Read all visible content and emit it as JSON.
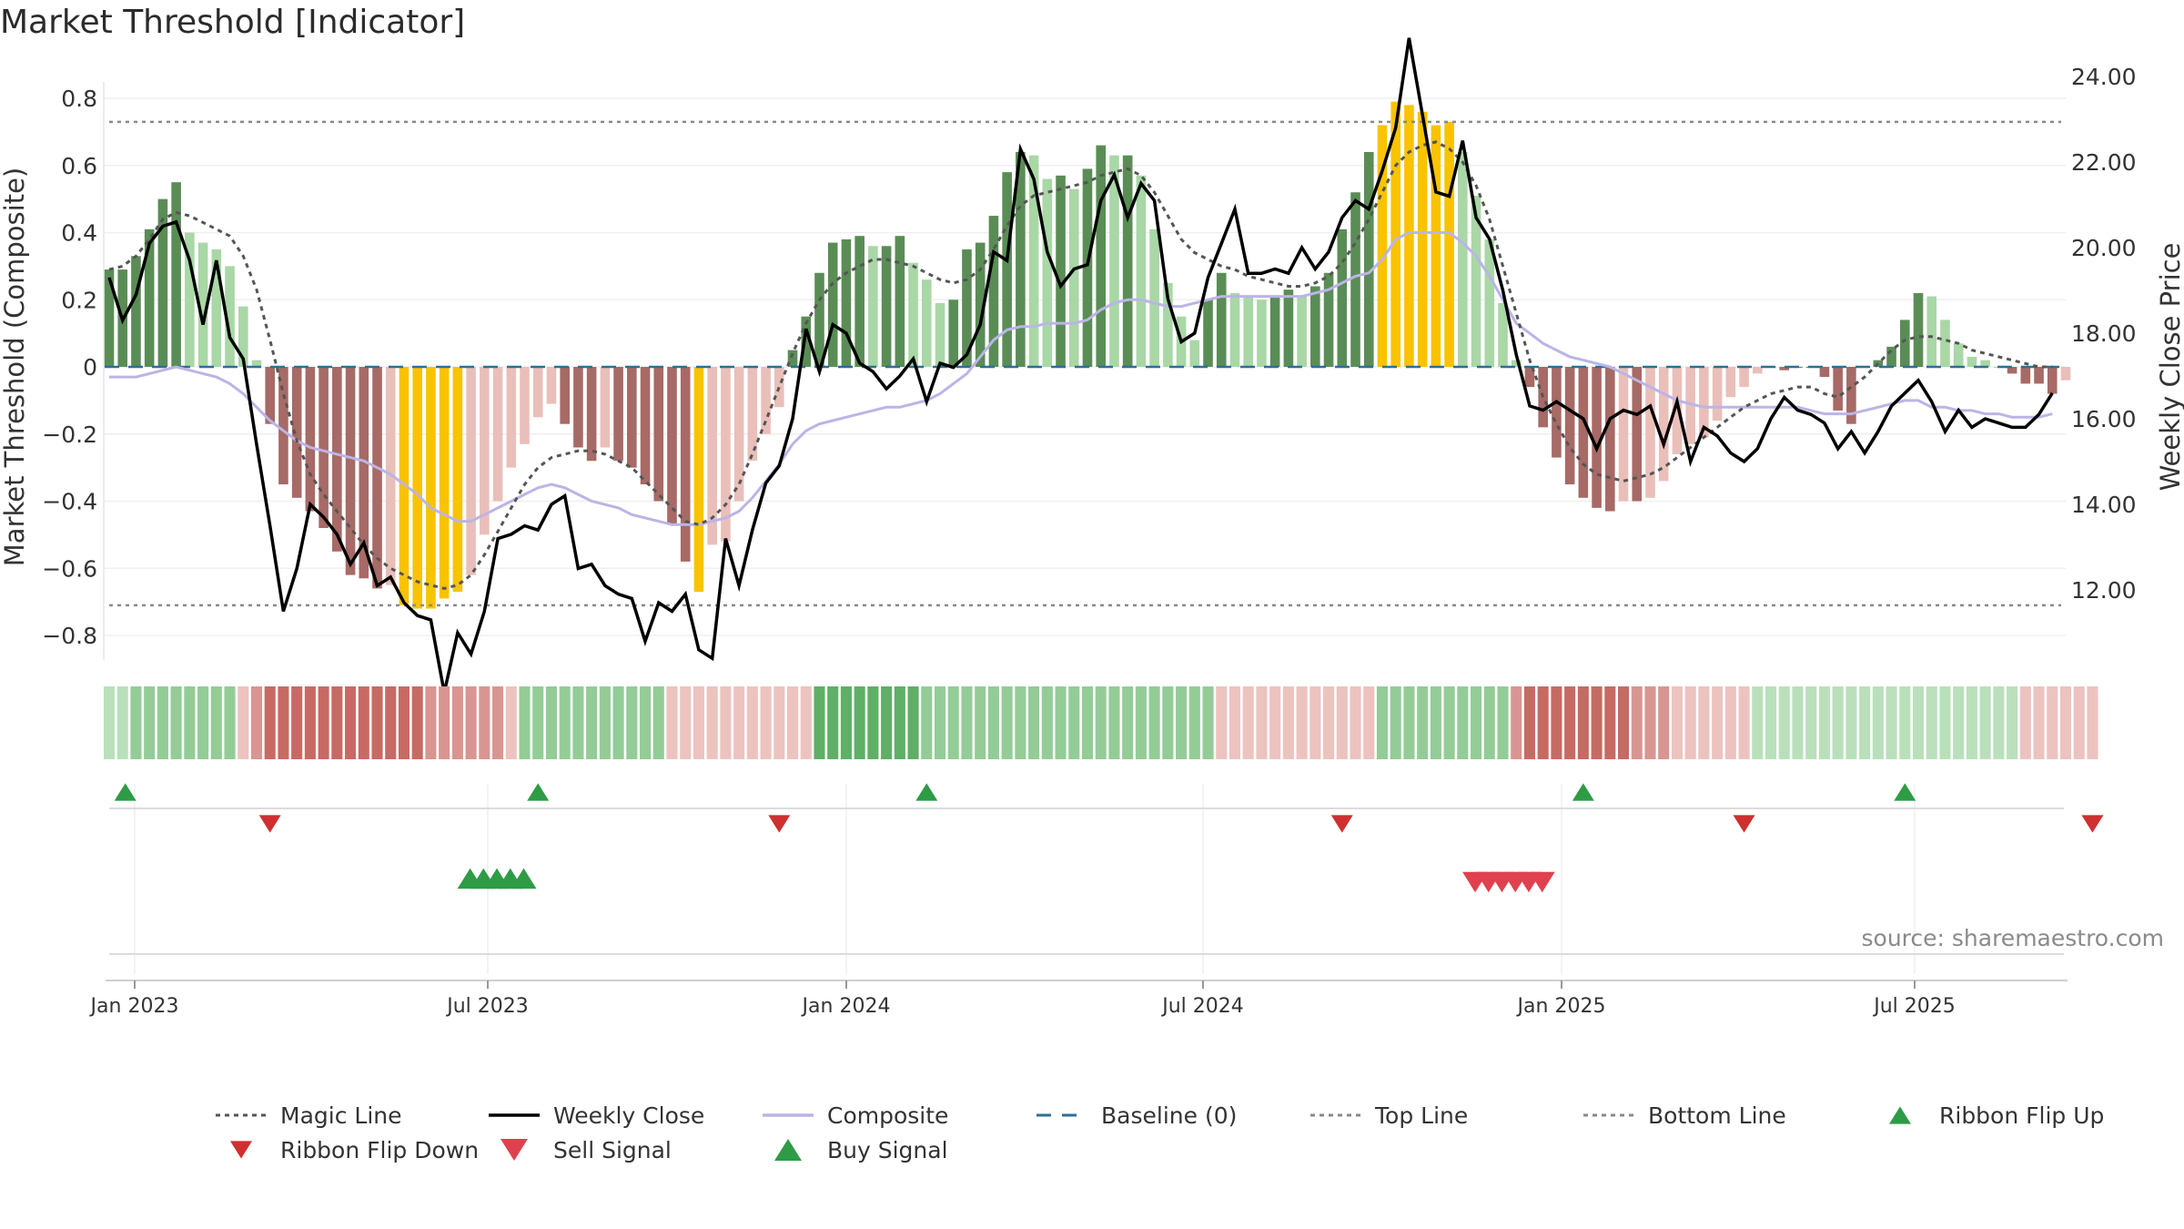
{
  "chart_data": {
    "type": "bar",
    "title": "Market Threshold [Indicator]",
    "ylabel_left": "Market Threshold (Composite)",
    "ylabel_right": "Weekly Close Price",
    "source": "source: sharemaestro.com",
    "left_ylim": [
      -0.85,
      0.85
    ],
    "right_ylim": [
      10.7,
      24.6
    ],
    "left_ticks": [
      "0.8",
      "0.6",
      "0.4",
      "0.2",
      "0",
      "−0.2",
      "−0.4",
      "−0.6",
      "−0.8"
    ],
    "right_ticks": [
      "24.00",
      "22.00",
      "20.00",
      "18.00",
      "16.00",
      "14.00",
      "12.00"
    ],
    "x_ticks": [
      "Jan 2023",
      "Jul 2023",
      "Jan 2024",
      "Jul 2024",
      "Jan 2025",
      "Jul 2025"
    ],
    "top_line": 0.73,
    "bottom_line": -0.71,
    "baseline": 0,
    "composite_bars": [
      0.29,
      0.29,
      0.33,
      0.41,
      0.5,
      0.55,
      0.4,
      0.37,
      0.35,
      0.3,
      0.18,
      0.02,
      -0.17,
      -0.35,
      -0.39,
      -0.43,
      -0.48,
      -0.55,
      -0.62,
      -0.63,
      -0.66,
      -0.65,
      -0.71,
      -0.72,
      -0.72,
      -0.69,
      -0.67,
      -0.62,
      -0.5,
      -0.4,
      -0.3,
      -0.23,
      -0.15,
      -0.11,
      -0.17,
      -0.24,
      -0.28,
      -0.24,
      -0.28,
      -0.3,
      -0.35,
      -0.4,
      -0.47,
      -0.58,
      -0.67,
      -0.53,
      -0.52,
      -0.4,
      -0.28,
      -0.2,
      -0.12,
      0.05,
      0.15,
      0.28,
      0.37,
      0.38,
      0.39,
      0.36,
      0.36,
      0.39,
      0.31,
      0.26,
      0.19,
      0.2,
      0.35,
      0.37,
      0.45,
      0.58,
      0.64,
      0.63,
      0.56,
      0.57,
      0.53,
      0.59,
      0.66,
      0.63,
      0.63,
      0.57,
      0.41,
      0.25,
      0.15,
      0.08,
      0.2,
      0.28,
      0.22,
      0.21,
      0.2,
      0.21,
      0.23,
      0.21,
      0.24,
      0.28,
      0.41,
      0.52,
      0.64,
      0.72,
      0.79,
      0.78,
      0.76,
      0.72,
      0.73,
      0.64,
      0.51,
      0.38,
      0.19,
      0.02,
      -0.06,
      -0.18,
      -0.27,
      -0.35,
      -0.39,
      -0.42,
      -0.43,
      -0.4,
      -0.4,
      -0.39,
      -0.34,
      -0.26,
      -0.23,
      -0.21,
      -0.16,
      -0.09,
      -0.06,
      -0.02,
      0,
      -0.01,
      0,
      0,
      -0.03,
      -0.13,
      -0.17,
      0,
      0.02,
      0.06,
      0.14,
      0.22,
      0.21,
      0.14,
      0.07,
      0.03,
      0.02,
      0,
      -0.02,
      -0.05,
      -0.05,
      -0.08,
      -0.04
    ],
    "bar_colors": {
      "strong_pos": "#5a8d56",
      "weak_pos": "#a9d7a6",
      "strong_neg": "#a76a66",
      "weak_neg": "#eabfba",
      "extreme": "#f9c300"
    },
    "weekly_close": [
      19.3,
      18.3,
      18.9,
      20.1,
      20.5,
      20.6,
      19.7,
      18.2,
      19.7,
      17.9,
      17.4,
      15.4,
      13.5,
      11.5,
      12.5,
      14.0,
      13.7,
      13.3,
      12.6,
      13.1,
      12.1,
      12.3,
      11.7,
      11.4,
      11.3,
      9.6,
      11.0,
      10.5,
      11.5,
      13.2,
      13.3,
      13.5,
      13.4,
      14.0,
      14.2,
      12.5,
      12.6,
      12.1,
      11.9,
      11.8,
      10.8,
      11.7,
      11.5,
      11.9,
      10.6,
      10.4,
      13.2,
      12.1,
      13.4,
      14.5,
      14.9,
      16.0,
      18.1,
      17.1,
      18.2,
      18.0,
      17.3,
      17.1,
      16.7,
      17.0,
      17.4,
      16.4,
      17.3,
      17.2,
      17.5,
      18.2,
      19.9,
      19.7,
      22.3,
      21.6,
      19.9,
      19.1,
      19.5,
      19.6,
      21.1,
      21.7,
      20.7,
      21.5,
      21.1,
      18.8,
      17.8,
      18.0,
      19.3,
      20.1,
      20.9,
      19.4,
      19.4,
      19.5,
      19.4,
      20.0,
      19.5,
      19.9,
      20.7,
      21.1,
      20.9,
      21.8,
      22.8,
      24.9,
      23.1,
      21.3,
      21.2,
      22.5,
      20.7,
      20.2,
      19.0,
      17.5,
      16.3,
      16.2,
      16.4,
      16.2,
      16.0,
      15.3,
      16.0,
      16.2,
      16.1,
      16.3,
      15.4,
      16.4,
      15.0,
      15.8,
      15.6,
      15.2,
      15.0,
      15.3,
      16.0,
      16.5,
      16.2,
      16.1,
      15.9,
      15.3,
      15.7,
      15.2,
      15.7,
      16.3,
      16.6,
      16.9,
      16.4,
      15.7,
      16.2,
      15.8,
      16.0,
      15.9,
      15.8,
      15.8,
      16.1,
      16.6
    ],
    "magic_line": [
      0.29,
      0.3,
      0.33,
      0.38,
      0.44,
      0.46,
      0.45,
      0.43,
      0.41,
      0.39,
      0.33,
      0.23,
      0.08,
      -0.08,
      -0.22,
      -0.32,
      -0.38,
      -0.43,
      -0.48,
      -0.53,
      -0.57,
      -0.6,
      -0.62,
      -0.64,
      -0.65,
      -0.66,
      -0.65,
      -0.62,
      -0.56,
      -0.49,
      -0.42,
      -0.35,
      -0.3,
      -0.27,
      -0.26,
      -0.25,
      -0.25,
      -0.26,
      -0.28,
      -0.3,
      -0.34,
      -0.38,
      -0.42,
      -0.46,
      -0.47,
      -0.45,
      -0.41,
      -0.35,
      -0.26,
      -0.16,
      -0.06,
      0.04,
      0.13,
      0.2,
      0.25,
      0.28,
      0.3,
      0.32,
      0.32,
      0.31,
      0.3,
      0.28,
      0.26,
      0.25,
      0.26,
      0.29,
      0.35,
      0.42,
      0.48,
      0.51,
      0.52,
      0.53,
      0.54,
      0.55,
      0.57,
      0.58,
      0.59,
      0.57,
      0.52,
      0.45,
      0.38,
      0.34,
      0.32,
      0.3,
      0.29,
      0.27,
      0.26,
      0.25,
      0.24,
      0.24,
      0.25,
      0.27,
      0.31,
      0.37,
      0.44,
      0.52,
      0.6,
      0.64,
      0.66,
      0.67,
      0.65,
      0.61,
      0.54,
      0.44,
      0.3,
      0.16,
      0.02,
      -0.09,
      -0.17,
      -0.24,
      -0.29,
      -0.32,
      -0.33,
      -0.34,
      -0.33,
      -0.32,
      -0.3,
      -0.27,
      -0.24,
      -0.21,
      -0.18,
      -0.15,
      -0.12,
      -0.1,
      -0.08,
      -0.07,
      -0.06,
      -0.06,
      -0.08,
      -0.09,
      -0.06,
      -0.03,
      0.01,
      0.05,
      0.08,
      0.09,
      0.09,
      0.08,
      0.07,
      0.05,
      0.04,
      0.03,
      0.02,
      0.01,
      0,
      0
    ],
    "composite_line": [
      -0.03,
      -0.03,
      -0.03,
      -0.02,
      -0.01,
      0,
      -0.01,
      -0.02,
      -0.03,
      -0.05,
      -0.08,
      -0.12,
      -0.16,
      -0.19,
      -0.22,
      -0.24,
      -0.25,
      -0.26,
      -0.27,
      -0.28,
      -0.3,
      -0.32,
      -0.35,
      -0.38,
      -0.42,
      -0.44,
      -0.46,
      -0.46,
      -0.44,
      -0.42,
      -0.4,
      -0.38,
      -0.36,
      -0.35,
      -0.36,
      -0.38,
      -0.4,
      -0.41,
      -0.42,
      -0.44,
      -0.45,
      -0.46,
      -0.47,
      -0.47,
      -0.47,
      -0.46,
      -0.45,
      -0.43,
      -0.39,
      -0.34,
      -0.29,
      -0.23,
      -0.19,
      -0.17,
      -0.16,
      -0.15,
      -0.14,
      -0.13,
      -0.12,
      -0.12,
      -0.11,
      -0.1,
      -0.08,
      -0.05,
      -0.02,
      0.03,
      0.08,
      0.11,
      0.12,
      0.12,
      0.13,
      0.13,
      0.13,
      0.14,
      0.17,
      0.19,
      0.2,
      0.2,
      0.19,
      0.18,
      0.18,
      0.19,
      0.2,
      0.21,
      0.21,
      0.21,
      0.21,
      0.21,
      0.21,
      0.21,
      0.22,
      0.23,
      0.25,
      0.27,
      0.28,
      0.32,
      0.38,
      0.4,
      0.4,
      0.4,
      0.4,
      0.37,
      0.33,
      0.27,
      0.2,
      0.13,
      0.1,
      0.07,
      0.05,
      0.03,
      0.02,
      0.01,
      0,
      -0.02,
      -0.04,
      -0.06,
      -0.08,
      -0.1,
      -0.11,
      -0.12,
      -0.12,
      -0.12,
      -0.12,
      -0.12,
      -0.12,
      -0.12,
      -0.12,
      -0.13,
      -0.14,
      -0.14,
      -0.14,
      -0.13,
      -0.12,
      -0.11,
      -0.1,
      -0.1,
      -0.12,
      -0.12,
      -0.13,
      -0.13,
      -0.14,
      -0.14,
      -0.15,
      -0.15,
      -0.15,
      -0.14
    ],
    "ribbon": [
      1,
      1,
      2,
      2,
      2,
      2,
      2,
      2,
      2,
      2,
      -1,
      -2,
      -3,
      -3,
      -3,
      -3,
      -3,
      -3,
      -3,
      -3,
      -3,
      -3,
      -3,
      -3,
      -2,
      -2,
      -2,
      -2,
      -2,
      -2,
      -1,
      2,
      2,
      2,
      2,
      2,
      2,
      2,
      2,
      2,
      2,
      2,
      -1,
      -1,
      -1,
      -1,
      -1,
      -1,
      -1,
      -1,
      -1,
      -1,
      -1,
      3,
      3,
      3,
      3,
      3,
      3,
      3,
      3,
      2,
      2,
      2,
      2,
      2,
      2,
      2,
      2,
      2,
      2,
      2,
      2,
      2,
      2,
      2,
      2,
      2,
      2,
      2,
      2,
      2,
      2,
      -1,
      -1,
      -1,
      -1,
      -1,
      -1,
      -1,
      -1,
      -1,
      -1,
      -1,
      -1,
      2,
      2,
      2,
      2,
      2,
      2,
      2,
      2,
      2,
      2,
      -2,
      -3,
      -3,
      -3,
      -3,
      -3,
      -3,
      -3,
      -3,
      -2,
      -2,
      -2,
      -1,
      -1,
      -1,
      -1,
      -1,
      -1,
      1,
      1,
      1,
      1,
      1,
      1,
      1,
      1,
      1,
      1,
      1,
      1,
      1,
      1,
      1,
      1,
      1,
      1,
      1,
      1,
      -1,
      -1,
      -1,
      -1,
      -1,
      -1
    ],
    "ribbon_colors": {
      "3": "#5faf66",
      "2": "#93cc97",
      "1": "#b9e0bb",
      "-1": "#ecc3bf",
      "-2": "#d99591",
      "-3": "#c86a64"
    },
    "ribbon_flip_up_idx": [
      1,
      32,
      61,
      110,
      134
    ],
    "ribbon_flip_down_idx": [
      12,
      50,
      92,
      122,
      148
    ],
    "buy_signal_idx": [
      27,
      28,
      29,
      30,
      31
    ],
    "sell_signal_idx": [
      102,
      103,
      104,
      105,
      106,
      107
    ],
    "legend": [
      {
        "label": "Magic Line",
        "kind": "dotted-line",
        "color": "#555555"
      },
      {
        "label": "Weekly Close",
        "kind": "solid-line",
        "color": "#000000"
      },
      {
        "label": "Composite",
        "kind": "solid-line",
        "color": "#bcb4e6"
      },
      {
        "label": "Baseline (0)",
        "kind": "dashed-line",
        "color": "#2d6f96"
      },
      {
        "label": "Top Line",
        "kind": "dotted-line",
        "color": "#8a8a8a"
      },
      {
        "label": "Bottom Line",
        "kind": "dotted-line",
        "color": "#8a8a8a"
      },
      {
        "label": "Ribbon Flip Up",
        "kind": "triangle-up",
        "color": "#2e9b45"
      },
      {
        "label": "Ribbon Flip Down",
        "kind": "triangle-down",
        "color": "#cf2f2f"
      },
      {
        "label": "Sell Signal",
        "kind": "triangle-down",
        "color": "#e0414f"
      },
      {
        "label": "Buy Signal",
        "kind": "triangle-up",
        "color": "#2e9b45"
      }
    ]
  }
}
